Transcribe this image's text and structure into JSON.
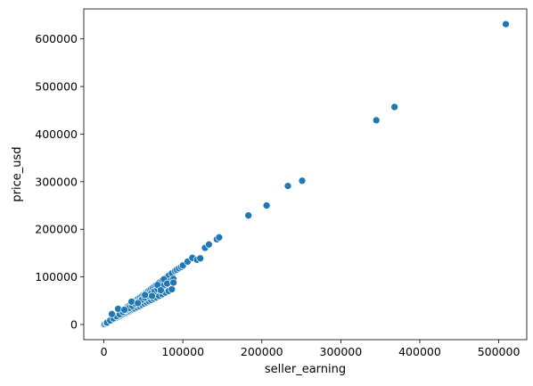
{
  "chart_data": {
    "type": "scatter",
    "title": "",
    "xlabel": "seller_earning",
    "ylabel": "price_usd",
    "xlim": [
      -25500,
      535500
    ],
    "ylim": [
      -31800,
      663000
    ],
    "grid": false,
    "legend": "none",
    "point_color": "#1f77b4",
    "x_ticks": [
      {
        "value": 0,
        "label": "0"
      },
      {
        "value": 100000,
        "label": "100000"
      },
      {
        "value": 200000,
        "label": "200000"
      },
      {
        "value": 300000,
        "label": "300000"
      },
      {
        "value": 400000,
        "label": "400000"
      },
      {
        "value": 500000,
        "label": "500000"
      }
    ],
    "y_ticks": [
      {
        "value": 0,
        "label": "0"
      },
      {
        "value": 100000,
        "label": "100000"
      },
      {
        "value": 200000,
        "label": "200000"
      },
      {
        "value": 300000,
        "label": "300000"
      },
      {
        "value": 400000,
        "label": "400000"
      },
      {
        "value": 500000,
        "label": "500000"
      },
      {
        "value": 600000,
        "label": "600000"
      }
    ],
    "points": [
      {
        "x": 0,
        "y": 0
      },
      {
        "x": 1000,
        "y": 1200
      },
      {
        "x": 2000,
        "y": 2500
      },
      {
        "x": 3000,
        "y": 3700
      },
      {
        "x": 4000,
        "y": 5000
      },
      {
        "x": 5000,
        "y": 6200
      },
      {
        "x": 6000,
        "y": 7400
      },
      {
        "x": 7000,
        "y": 8700
      },
      {
        "x": 8000,
        "y": 10000
      },
      {
        "x": 9000,
        "y": 11200
      },
      {
        "x": 10000,
        "y": 12500
      },
      {
        "x": 11000,
        "y": 13700
      },
      {
        "x": 12000,
        "y": 15000
      },
      {
        "x": 13000,
        "y": 16200
      },
      {
        "x": 14000,
        "y": 17400
      },
      {
        "x": 15000,
        "y": 18700
      },
      {
        "x": 16000,
        "y": 20000
      },
      {
        "x": 17000,
        "y": 21200
      },
      {
        "x": 18000,
        "y": 22500
      },
      {
        "x": 19000,
        "y": 23700
      },
      {
        "x": 20000,
        "y": 25000
      },
      {
        "x": 21000,
        "y": 26200
      },
      {
        "x": 22000,
        "y": 27400
      },
      {
        "x": 23000,
        "y": 28700
      },
      {
        "x": 24000,
        "y": 30000
      },
      {
        "x": 25000,
        "y": 31200
      },
      {
        "x": 26000,
        "y": 32500
      },
      {
        "x": 27000,
        "y": 33700
      },
      {
        "x": 28000,
        "y": 35000
      },
      {
        "x": 29000,
        "y": 36200
      },
      {
        "x": 30000,
        "y": 37500
      },
      {
        "x": 32000,
        "y": 40000
      },
      {
        "x": 34000,
        "y": 42500
      },
      {
        "x": 36000,
        "y": 45000
      },
      {
        "x": 38000,
        "y": 47500
      },
      {
        "x": 40000,
        "y": 50000
      },
      {
        "x": 42000,
        "y": 52500
      },
      {
        "x": 44000,
        "y": 55000
      },
      {
        "x": 46000,
        "y": 57500
      },
      {
        "x": 48000,
        "y": 60000
      },
      {
        "x": 50000,
        "y": 62500
      },
      {
        "x": 52000,
        "y": 65000
      },
      {
        "x": 54000,
        "y": 67500
      },
      {
        "x": 56000,
        "y": 70000
      },
      {
        "x": 58000,
        "y": 72500
      },
      {
        "x": 60000,
        "y": 75000
      },
      {
        "x": 62000,
        "y": 77500
      },
      {
        "x": 64000,
        "y": 80000
      },
      {
        "x": 66000,
        "y": 82500
      },
      {
        "x": 70000,
        "y": 87500
      },
      {
        "x": 74000,
        "y": 92500
      },
      {
        "x": 78000,
        "y": 97500
      },
      {
        "x": 82000,
        "y": 102500
      },
      {
        "x": 86000,
        "y": 107500
      },
      {
        "x": 90000,
        "y": 112500
      },
      {
        "x": 1000,
        "y": 800
      },
      {
        "x": 3000,
        "y": 2600
      },
      {
        "x": 5000,
        "y": 4300
      },
      {
        "x": 7000,
        "y": 6000
      },
      {
        "x": 9000,
        "y": 7700
      },
      {
        "x": 11000,
        "y": 9500
      },
      {
        "x": 13000,
        "y": 11200
      },
      {
        "x": 15000,
        "y": 12900
      },
      {
        "x": 17000,
        "y": 14600
      },
      {
        "x": 19000,
        "y": 16300
      },
      {
        "x": 21000,
        "y": 18100
      },
      {
        "x": 23000,
        "y": 19800
      },
      {
        "x": 25000,
        "y": 21500
      },
      {
        "x": 27000,
        "y": 23200
      },
      {
        "x": 29000,
        "y": 25000
      },
      {
        "x": 31000,
        "y": 26700
      },
      {
        "x": 33000,
        "y": 28400
      },
      {
        "x": 35000,
        "y": 30100
      },
      {
        "x": 37000,
        "y": 31800
      },
      {
        "x": 39000,
        "y": 33500
      },
      {
        "x": 42000,
        "y": 36100
      },
      {
        "x": 45000,
        "y": 38700
      },
      {
        "x": 48000,
        "y": 41300
      },
      {
        "x": 51000,
        "y": 43900
      },
      {
        "x": 54000,
        "y": 46400
      },
      {
        "x": 57000,
        "y": 49000
      },
      {
        "x": 60000,
        "y": 51600
      },
      {
        "x": 63000,
        "y": 54200
      },
      {
        "x": 66000,
        "y": 56800
      },
      {
        "x": 70000,
        "y": 60200
      },
      {
        "x": 74000,
        "y": 63600
      },
      {
        "x": 78000,
        "y": 67100
      },
      {
        "x": 82000,
        "y": 70500
      },
      {
        "x": 86000,
        "y": 74000
      },
      {
        "x": 4000,
        "y": 4000
      },
      {
        "x": 8000,
        "y": 8500
      },
      {
        "x": 12000,
        "y": 12800
      },
      {
        "x": 16000,
        "y": 17200
      },
      {
        "x": 20000,
        "y": 21500
      },
      {
        "x": 24000,
        "y": 26000
      },
      {
        "x": 28000,
        "y": 30300
      },
      {
        "x": 32000,
        "y": 34700
      },
      {
        "x": 36000,
        "y": 39000
      },
      {
        "x": 40000,
        "y": 43400
      },
      {
        "x": 44000,
        "y": 47800
      },
      {
        "x": 48000,
        "y": 52000
      },
      {
        "x": 52000,
        "y": 56500
      },
      {
        "x": 56000,
        "y": 60800
      },
      {
        "x": 60000,
        "y": 65200
      },
      {
        "x": 64000,
        "y": 69500
      },
      {
        "x": 68000,
        "y": 74000
      },
      {
        "x": 72000,
        "y": 78300
      },
      {
        "x": 76000,
        "y": 82600
      },
      {
        "x": 80000,
        "y": 87000
      },
      {
        "x": 84000,
        "y": 91300
      },
      {
        "x": 88000,
        "y": 95700
      },
      {
        "x": 10000,
        "y": 22000
      },
      {
        "x": 18000,
        "y": 33000
      },
      {
        "x": 26000,
        "y": 31000
      },
      {
        "x": 35000,
        "y": 48000
      },
      {
        "x": 43000,
        "y": 45000
      },
      {
        "x": 52000,
        "y": 62000
      },
      {
        "x": 61000,
        "y": 60000
      },
      {
        "x": 68000,
        "y": 83000
      },
      {
        "x": 72000,
        "y": 72000
      },
      {
        "x": 76000,
        "y": 95000
      },
      {
        "x": 80000,
        "y": 86000
      },
      {
        "x": 88000,
        "y": 88000
      },
      {
        "x": 92000,
        "y": 115000
      },
      {
        "x": 95000,
        "y": 118000
      },
      {
        "x": 98000,
        "y": 121000
      },
      {
        "x": 100000,
        "y": 124000
      },
      {
        "x": 106000,
        "y": 132000
      },
      {
        "x": 112000,
        "y": 140000
      },
      {
        "x": 118000,
        "y": 136000
      },
      {
        "x": 122000,
        "y": 139000
      },
      {
        "x": 128000,
        "y": 161000
      },
      {
        "x": 133000,
        "y": 168000
      },
      {
        "x": 143000,
        "y": 179000
      },
      {
        "x": 146000,
        "y": 183000
      },
      {
        "x": 183000,
        "y": 229000
      },
      {
        "x": 206000,
        "y": 250000
      },
      {
        "x": 233000,
        "y": 291000
      },
      {
        "x": 251000,
        "y": 302000
      },
      {
        "x": 345000,
        "y": 429000
      },
      {
        "x": 368000,
        "y": 457000
      },
      {
        "x": 509000,
        "y": 631000
      }
    ]
  }
}
